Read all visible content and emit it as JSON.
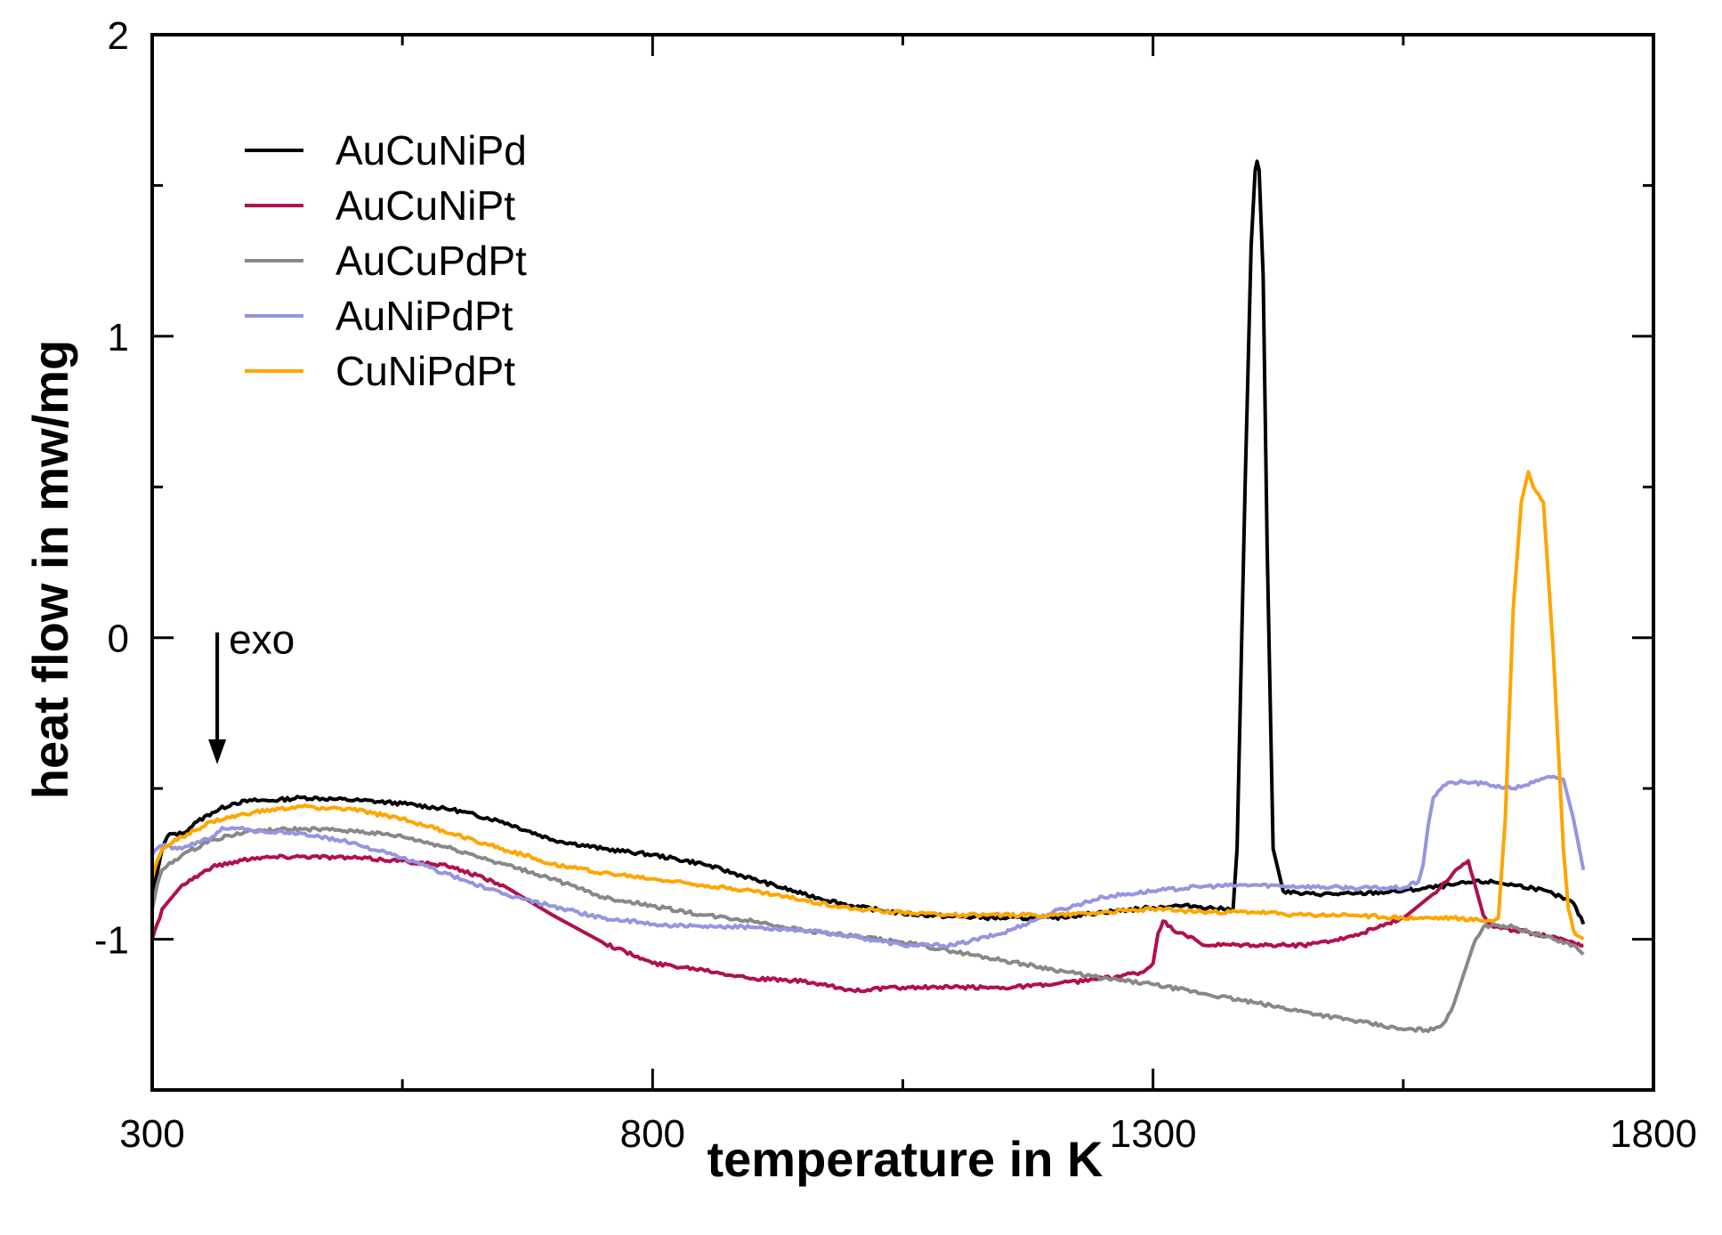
{
  "chart_data": {
    "type": "line",
    "title": "",
    "xlabel": "temperature  in K",
    "ylabel": "heat flow  in mw/mg",
    "xlim": [
      300,
      1800
    ],
    "ylim": [
      -1.5,
      2
    ],
    "xticks": [
      300,
      800,
      1300,
      1800
    ],
    "xtick_labels": [
      "300",
      "800",
      "1300",
      "1800"
    ],
    "xminor": [
      550,
      1050,
      1550
    ],
    "yticks": [
      -1,
      0,
      1,
      2
    ],
    "ytick_labels": [
      "-1",
      "0",
      "1",
      "2"
    ],
    "yminor": [
      -0.5,
      0.5,
      1.5
    ],
    "grid": false,
    "legend_position": "top-left",
    "annotation": {
      "text": "exo",
      "x": 365,
      "y_from": 0,
      "y_to": -0.42
    },
    "series": [
      {
        "name": "AuCuNiPd",
        "color": "#000000",
        "x": [
          300,
          305,
          310,
          315,
          320,
          330,
          345,
          360,
          380,
          400,
          420,
          450,
          480,
          510,
          550,
          600,
          650,
          700,
          750,
          800,
          850,
          900,
          950,
          1000,
          1050,
          1100,
          1150,
          1200,
          1250,
          1300,
          1320,
          1340,
          1370,
          1380,
          1384,
          1392,
          1398,
          1402,
          1404,
          1406,
          1410,
          1414,
          1420,
          1430,
          1450,
          1500,
          1550,
          1600,
          1620,
          1640,
          1660,
          1680,
          1700,
          1720,
          1730
        ],
        "y": [
          -0.85,
          -0.78,
          -0.7,
          -0.66,
          -0.65,
          -0.65,
          -0.61,
          -0.58,
          -0.55,
          -0.54,
          -0.54,
          -0.53,
          -0.535,
          -0.54,
          -0.55,
          -0.57,
          -0.61,
          -0.67,
          -0.7,
          -0.72,
          -0.75,
          -0.8,
          -0.85,
          -0.89,
          -0.915,
          -0.925,
          -0.93,
          -0.93,
          -0.91,
          -0.895,
          -0.89,
          -0.89,
          -0.9,
          -0.9,
          -0.7,
          0.5,
          1.3,
          1.55,
          1.58,
          1.55,
          1.2,
          0.3,
          -0.7,
          -0.84,
          -0.85,
          -0.85,
          -0.84,
          -0.82,
          -0.81,
          -0.81,
          -0.82,
          -0.83,
          -0.85,
          -0.88,
          -0.95
        ]
      },
      {
        "name": "AuCuNiPt",
        "color": "#b01050",
        "x": [
          300,
          305,
          310,
          330,
          360,
          400,
          450,
          500,
          550,
          600,
          650,
          700,
          750,
          800,
          850,
          900,
          950,
          1000,
          1050,
          1100,
          1150,
          1200,
          1250,
          1290,
          1300,
          1305,
          1310,
          1320,
          1330,
          1350,
          1400,
          1450,
          1500,
          1550,
          1580,
          1600,
          1610,
          1615,
          1620,
          1630,
          1640,
          1660,
          1680,
          1700,
          1720,
          1730
        ],
        "y": [
          -1.0,
          -0.95,
          -0.9,
          -0.82,
          -0.76,
          -0.73,
          -0.725,
          -0.73,
          -0.74,
          -0.76,
          -0.82,
          -0.92,
          -1.01,
          -1.08,
          -1.1,
          -1.13,
          -1.14,
          -1.17,
          -1.16,
          -1.16,
          -1.16,
          -1.15,
          -1.13,
          -1.11,
          -1.08,
          -0.98,
          -0.94,
          -0.97,
          -0.98,
          -1.02,
          -1.02,
          -1.02,
          -0.99,
          -0.93,
          -0.85,
          -0.78,
          -0.75,
          -0.74,
          -0.8,
          -0.92,
          -0.96,
          -0.97,
          -0.98,
          -0.99,
          -1.01,
          -1.02
        ]
      },
      {
        "name": "AuCuPdPt",
        "color": "#888888",
        "x": [
          300,
          305,
          310,
          330,
          360,
          400,
          450,
          500,
          550,
          600,
          650,
          700,
          750,
          800,
          850,
          900,
          950,
          1000,
          1050,
          1100,
          1150,
          1200,
          1250,
          1300,
          1350,
          1400,
          1450,
          1500,
          1550,
          1580,
          1590,
          1600,
          1610,
          1620,
          1630,
          1640,
          1660,
          1680,
          1700,
          1720,
          1730
        ],
        "y": [
          -0.9,
          -0.82,
          -0.77,
          -0.72,
          -0.67,
          -0.64,
          -0.635,
          -0.64,
          -0.66,
          -0.7,
          -0.75,
          -0.8,
          -0.86,
          -0.89,
          -0.92,
          -0.94,
          -0.97,
          -0.99,
          -1.01,
          -1.04,
          -1.07,
          -1.1,
          -1.13,
          -1.15,
          -1.18,
          -1.21,
          -1.24,
          -1.27,
          -1.3,
          -1.3,
          -1.28,
          -1.22,
          -1.12,
          -1.02,
          -0.96,
          -0.95,
          -0.96,
          -0.98,
          -1.0,
          -1.02,
          -1.05
        ]
      },
      {
        "name": "AuNiPdPt",
        "color": "#9595e0",
        "x": [
          300,
          305,
          310,
          330,
          360,
          370,
          380,
          400,
          450,
          500,
          550,
          600,
          650,
          700,
          750,
          800,
          850,
          900,
          950,
          1000,
          1050,
          1100,
          1150,
          1200,
          1250,
          1300,
          1350,
          1400,
          1450,
          1500,
          1550,
          1565,
          1570,
          1575,
          1580,
          1590,
          1600,
          1620,
          1640,
          1660,
          1680,
          1700,
          1710,
          1720,
          1730
        ],
        "y": [
          -0.72,
          -0.7,
          -0.69,
          -0.7,
          -0.66,
          -0.63,
          -0.63,
          -0.64,
          -0.65,
          -0.68,
          -0.73,
          -0.79,
          -0.85,
          -0.89,
          -0.93,
          -0.95,
          -0.96,
          -0.96,
          -0.97,
          -0.99,
          -1.02,
          -1.02,
          -0.98,
          -0.91,
          -0.86,
          -0.84,
          -0.825,
          -0.82,
          -0.825,
          -0.83,
          -0.83,
          -0.81,
          -0.75,
          -0.62,
          -0.53,
          -0.49,
          -0.48,
          -0.48,
          -0.49,
          -0.5,
          -0.48,
          -0.46,
          -0.47,
          -0.6,
          -0.77
        ]
      },
      {
        "name": "CuNiPdPt",
        "color": "#ffa500",
        "x": [
          300,
          305,
          310,
          330,
          360,
          400,
          450,
          500,
          550,
          600,
          650,
          700,
          750,
          800,
          850,
          900,
          950,
          1000,
          1050,
          1100,
          1150,
          1200,
          1250,
          1300,
          1350,
          1400,
          1450,
          1500,
          1550,
          1600,
          1640,
          1645,
          1652,
          1660,
          1668,
          1675,
          1680,
          1690,
          1700,
          1710,
          1715,
          1720,
          1725,
          1730
        ],
        "y": [
          -0.8,
          -0.74,
          -0.7,
          -0.66,
          -0.61,
          -0.58,
          -0.56,
          -0.57,
          -0.6,
          -0.65,
          -0.7,
          -0.75,
          -0.78,
          -0.8,
          -0.82,
          -0.84,
          -0.87,
          -0.9,
          -0.91,
          -0.92,
          -0.92,
          -0.92,
          -0.91,
          -0.9,
          -0.91,
          -0.91,
          -0.92,
          -0.92,
          -0.93,
          -0.93,
          -0.94,
          -0.93,
          -0.6,
          0.1,
          0.45,
          0.55,
          0.5,
          0.45,
          -0.05,
          -0.7,
          -0.9,
          -0.97,
          -0.99,
          -1.0
        ]
      }
    ]
  }
}
